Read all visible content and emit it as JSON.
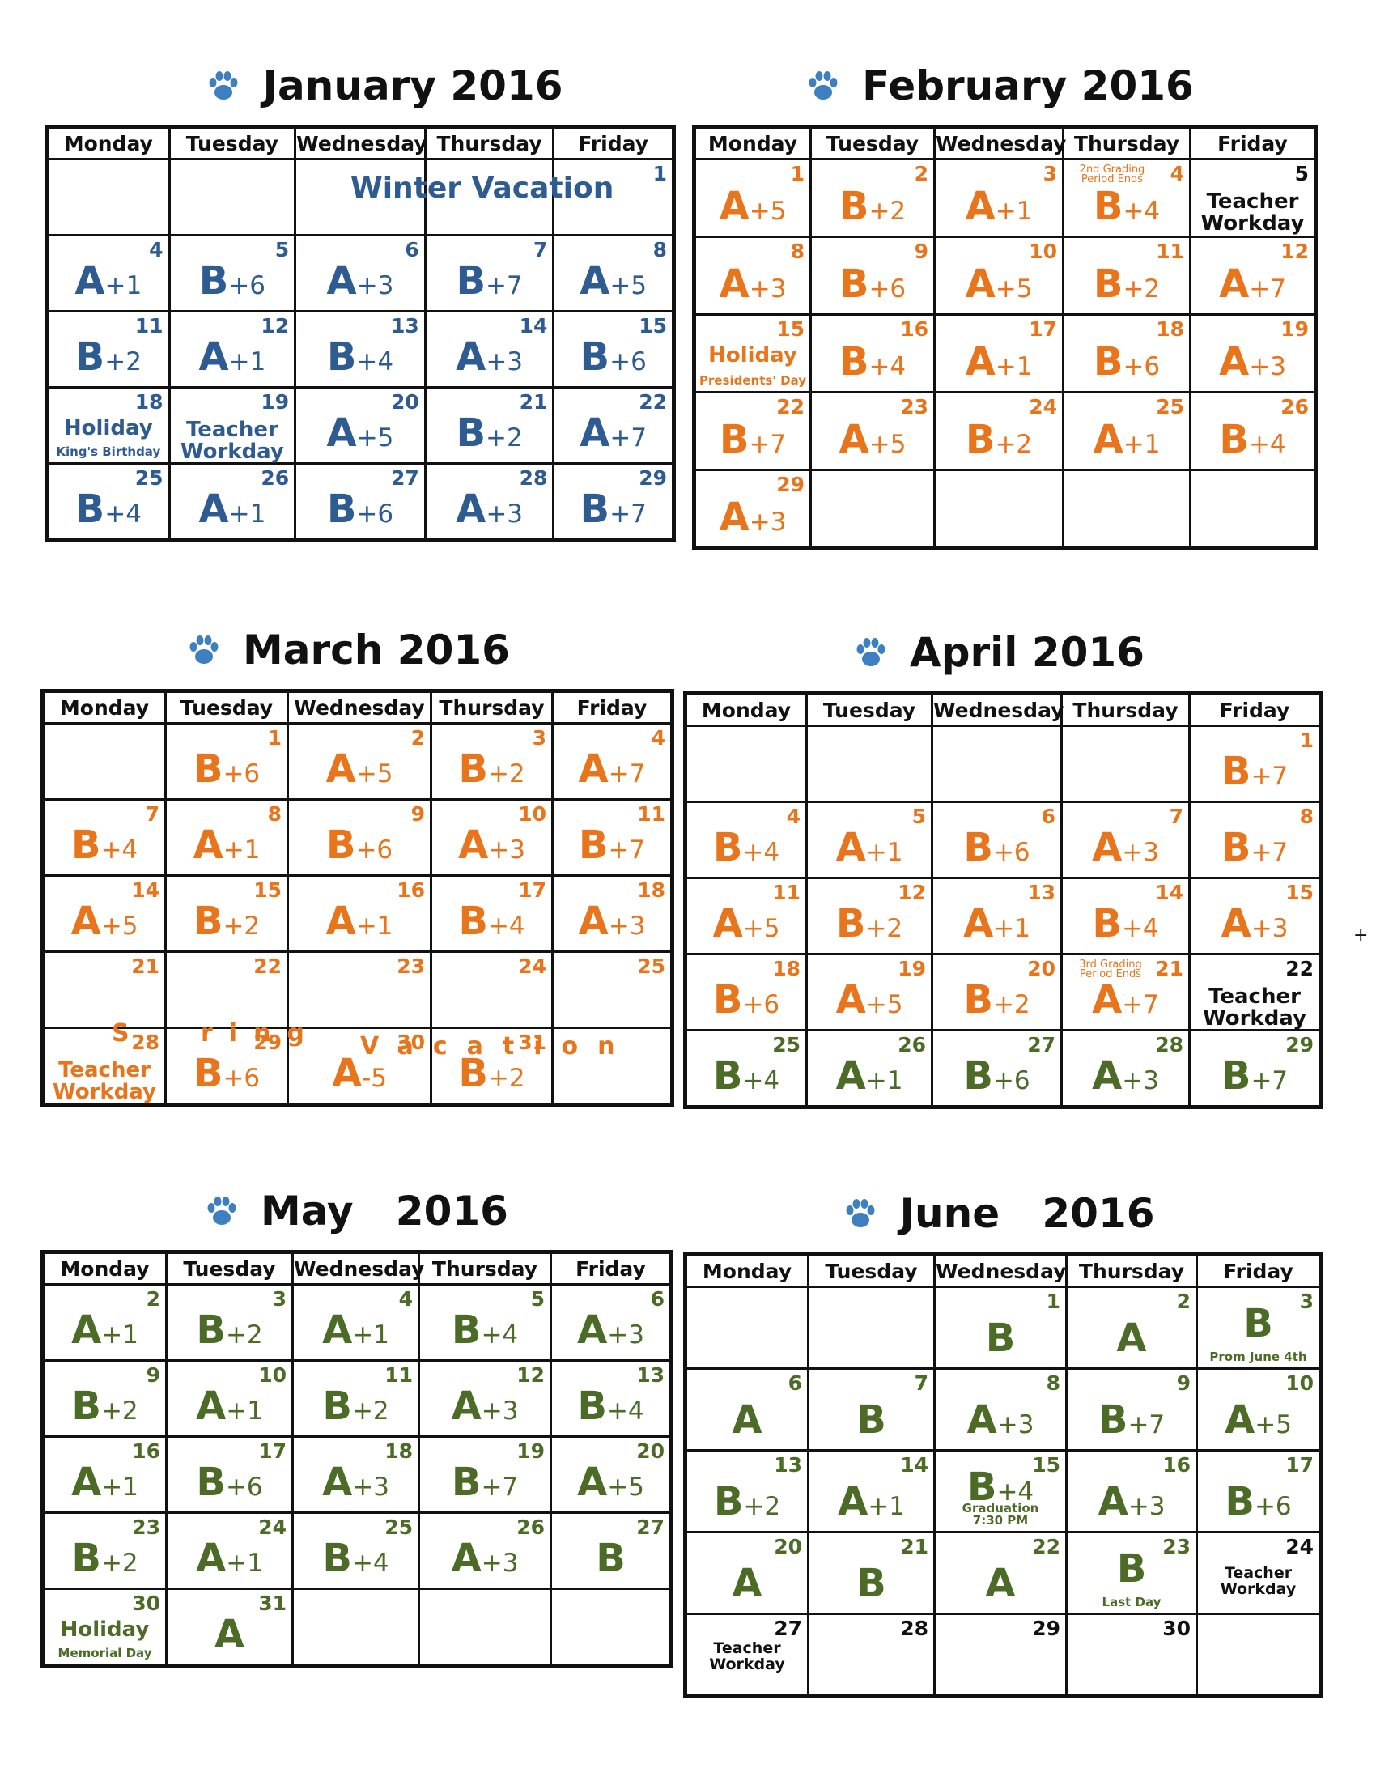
{
  "colors": {
    "january": "#2f5b93",
    "feb_apr": "#e8741c",
    "apr_jun": "#4b6b27",
    "grid": "#111111",
    "paw": "#3e7fc2"
  },
  "weekdays": [
    "Monday",
    "Tuesday",
    "Wednesday",
    "Thursday",
    "Friday"
  ],
  "months": [
    {
      "title": "January 2016",
      "weeks": [
        [
          {},
          {},
          {},
          {},
          {
            "day": "1"
          }
        ],
        [
          {
            "day": "4",
            "letter": "A",
            "delta": "+1"
          },
          {
            "day": "5",
            "letter": "B",
            "delta": "+6"
          },
          {
            "day": "6",
            "letter": "A",
            "delta": "+3"
          },
          {
            "day": "7",
            "letter": "B",
            "delta": "+7"
          },
          {
            "day": "8",
            "letter": "A",
            "delta": "+5"
          }
        ],
        [
          {
            "day": "11",
            "letter": "B",
            "delta": "+2"
          },
          {
            "day": "12",
            "letter": "A",
            "delta": "+1"
          },
          {
            "day": "13",
            "letter": "B",
            "delta": "+4"
          },
          {
            "day": "14",
            "letter": "A",
            "delta": "+3"
          },
          {
            "day": "15",
            "letter": "B",
            "delta": "+6"
          }
        ],
        [
          {
            "day": "18",
            "note": "Holiday",
            "sub": "King's Birthday"
          },
          {
            "day": "19",
            "note": "Teacher\nWorkday"
          },
          {
            "day": "20",
            "letter": "A",
            "delta": "+5"
          },
          {
            "day": "21",
            "letter": "B",
            "delta": "+2"
          },
          {
            "day": "22",
            "letter": "A",
            "delta": "+7"
          }
        ],
        [
          {
            "day": "25",
            "letter": "B",
            "delta": "+4"
          },
          {
            "day": "26",
            "letter": "A",
            "delta": "+1"
          },
          {
            "day": "27",
            "letter": "B",
            "delta": "+6"
          },
          {
            "day": "28",
            "letter": "A",
            "delta": "+3"
          },
          {
            "day": "29",
            "letter": "B",
            "delta": "+7"
          }
        ]
      ],
      "band": "Winter Vacation"
    },
    {
      "title": "February 2016",
      "weeks": [
        [
          {
            "day": "1",
            "letter": "A",
            "delta": "+5"
          },
          {
            "day": "2",
            "letter": "B",
            "delta": "+2"
          },
          {
            "day": "3",
            "letter": "A",
            "delta": "+1"
          },
          {
            "day": "4",
            "letter": "B",
            "delta": "+4",
            "tiny": "2nd Grading Period Ends"
          },
          {
            "day": "5",
            "note": "Teacher\nWorkday"
          }
        ],
        [
          {
            "day": "8",
            "letter": "A",
            "delta": "+3"
          },
          {
            "day": "9",
            "letter": "B",
            "delta": "+6"
          },
          {
            "day": "10",
            "letter": "A",
            "delta": "+5"
          },
          {
            "day": "11",
            "letter": "B",
            "delta": "+2"
          },
          {
            "day": "12",
            "letter": "A",
            "delta": "+7"
          }
        ],
        [
          {
            "day": "15",
            "note": "Holiday",
            "sub": "Presidents' Day"
          },
          {
            "day": "16",
            "letter": "B",
            "delta": "+4"
          },
          {
            "day": "17",
            "letter": "A",
            "delta": "+1"
          },
          {
            "day": "18",
            "letter": "B",
            "delta": "+6"
          },
          {
            "day": "19",
            "letter": "A",
            "delta": "+3"
          }
        ],
        [
          {
            "day": "22",
            "letter": "B",
            "delta": "+7"
          },
          {
            "day": "23",
            "letter": "A",
            "delta": "+5"
          },
          {
            "day": "24",
            "letter": "B",
            "delta": "+2"
          },
          {
            "day": "25",
            "letter": "A",
            "delta": "+1"
          },
          {
            "day": "26",
            "letter": "B",
            "delta": "+4"
          }
        ],
        [
          {
            "day": "29",
            "letter": "A",
            "delta": "+3"
          },
          {},
          {},
          {},
          {}
        ]
      ]
    },
    {
      "title": "March 2016",
      "weeks": [
        [
          {},
          {
            "day": "1",
            "letter": "B",
            "delta": "+6"
          },
          {
            "day": "2",
            "letter": "A",
            "delta": "+5"
          },
          {
            "day": "3",
            "letter": "B",
            "delta": "+2"
          },
          {
            "day": "4",
            "letter": "A",
            "delta": "+7"
          }
        ],
        [
          {
            "day": "7",
            "letter": "B",
            "delta": "+4"
          },
          {
            "day": "8",
            "letter": "A",
            "delta": "+1"
          },
          {
            "day": "9",
            "letter": "B",
            "delta": "+6"
          },
          {
            "day": "10",
            "letter": "A",
            "delta": "+3"
          },
          {
            "day": "11",
            "letter": "B",
            "delta": "+7"
          }
        ],
        [
          {
            "day": "14",
            "letter": "A",
            "delta": "+5"
          },
          {
            "day": "15",
            "letter": "B",
            "delta": "+2"
          },
          {
            "day": "16",
            "letter": "A",
            "delta": "+1"
          },
          {
            "day": "17",
            "letter": "B",
            "delta": "+4"
          },
          {
            "day": "18",
            "letter": "A",
            "delta": "+3"
          }
        ],
        [
          {
            "day": "21"
          },
          {
            "day": "22"
          },
          {
            "day": "23"
          },
          {
            "day": "24"
          },
          {
            "day": "25"
          }
        ],
        [
          {
            "day": "28",
            "note": "Teacher\nWorkday"
          },
          {
            "day": "29",
            "letter": "B",
            "delta": "+6"
          },
          {
            "day": "30",
            "letter": "A",
            "delta": "-5"
          },
          {
            "day": "31",
            "letter": "B",
            "delta": "+2"
          },
          {}
        ]
      ],
      "band_parts": [
        "S",
        "ring",
        "Vacation"
      ]
    },
    {
      "title": "April 2016",
      "weeks": [
        [
          {},
          {},
          {},
          {},
          {
            "day": "1",
            "letter": "B",
            "delta": "+7"
          }
        ],
        [
          {
            "day": "4",
            "letter": "B",
            "delta": "+4"
          },
          {
            "day": "5",
            "letter": "A",
            "delta": "+1"
          },
          {
            "day": "6",
            "letter": "B",
            "delta": "+6"
          },
          {
            "day": "7",
            "letter": "A",
            "delta": "+3"
          },
          {
            "day": "8",
            "letter": "B",
            "delta": "+7"
          }
        ],
        [
          {
            "day": "11",
            "letter": "A",
            "delta": "+5"
          },
          {
            "day": "12",
            "letter": "B",
            "delta": "+2"
          },
          {
            "day": "13",
            "letter": "A",
            "delta": "+1"
          },
          {
            "day": "14",
            "letter": "B",
            "delta": "+4"
          },
          {
            "day": "15",
            "letter": "A",
            "delta": "+3"
          }
        ],
        [
          {
            "day": "18",
            "letter": "B",
            "delta": "+6"
          },
          {
            "day": "19",
            "letter": "A",
            "delta": "+5"
          },
          {
            "day": "20",
            "letter": "B",
            "delta": "+2"
          },
          {
            "day": "21",
            "letter": "A",
            "delta": "+7",
            "tiny": "3rd Grading Period Ends"
          },
          {
            "day": "22",
            "note": "Teacher\nWorkday"
          }
        ],
        [
          {
            "day": "25",
            "letter": "B",
            "delta": "+4"
          },
          {
            "day": "26",
            "letter": "A",
            "delta": "+1"
          },
          {
            "day": "27",
            "letter": "B",
            "delta": "+6"
          },
          {
            "day": "28",
            "letter": "A",
            "delta": "+3"
          },
          {
            "day": "29",
            "letter": "B",
            "delta": "+7"
          }
        ]
      ],
      "stray_mark": "+"
    },
    {
      "title": "May   2016",
      "weeks": [
        [
          {
            "day": "2",
            "letter": "A",
            "delta": "+1"
          },
          {
            "day": "3",
            "letter": "B",
            "delta": "+2"
          },
          {
            "day": "4",
            "letter": "A",
            "delta": "+1"
          },
          {
            "day": "5",
            "letter": "B",
            "delta": "+4"
          },
          {
            "day": "6",
            "letter": "A",
            "delta": "+3"
          }
        ],
        [
          {
            "day": "9",
            "letter": "B",
            "delta": "+2"
          },
          {
            "day": "10",
            "letter": "A",
            "delta": "+1"
          },
          {
            "day": "11",
            "letter": "B",
            "delta": "+2"
          },
          {
            "day": "12",
            "letter": "A",
            "delta": "+3"
          },
          {
            "day": "13",
            "letter": "B",
            "delta": "+4"
          }
        ],
        [
          {
            "day": "16",
            "letter": "A",
            "delta": "+1"
          },
          {
            "day": "17",
            "letter": "B",
            "delta": "+6"
          },
          {
            "day": "18",
            "letter": "A",
            "delta": "+3"
          },
          {
            "day": "19",
            "letter": "B",
            "delta": "+7"
          },
          {
            "day": "20",
            "letter": "A",
            "delta": "+5"
          }
        ],
        [
          {
            "day": "23",
            "letter": "B",
            "delta": "+2"
          },
          {
            "day": "24",
            "letter": "A",
            "delta": "+1"
          },
          {
            "day": "25",
            "letter": "B",
            "delta": "+4"
          },
          {
            "day": "26",
            "letter": "A",
            "delta": "+3"
          },
          {
            "day": "27",
            "letter": "B"
          }
        ],
        [
          {
            "day": "30",
            "note": "Holiday",
            "sub": "Memorial Day"
          },
          {
            "day": "31",
            "letter": "A"
          },
          {},
          {},
          {}
        ]
      ]
    },
    {
      "title": "June   2016",
      "weeks": [
        [
          {},
          {},
          {
            "day": "1",
            "letter": "B"
          },
          {
            "day": "2",
            "letter": "A"
          },
          {
            "day": "3",
            "letter": "B",
            "sub": "Prom June 4th"
          }
        ],
        [
          {
            "day": "6",
            "letter": "A"
          },
          {
            "day": "7",
            "letter": "B"
          },
          {
            "day": "8",
            "letter": "A",
            "delta": "+3"
          },
          {
            "day": "9",
            "letter": "B",
            "delta": "+7"
          },
          {
            "day": "10",
            "letter": "A",
            "delta": "+5"
          }
        ],
        [
          {
            "day": "13",
            "letter": "B",
            "delta": "+2"
          },
          {
            "day": "14",
            "letter": "A",
            "delta": "+1"
          },
          {
            "day": "15",
            "letter": "B",
            "delta": "+4",
            "sub": "Graduation\n7:30 PM"
          },
          {
            "day": "16",
            "letter": "A",
            "delta": "+3"
          },
          {
            "day": "17",
            "letter": "B",
            "delta": "+6"
          }
        ],
        [
          {
            "day": "20",
            "letter": "A"
          },
          {
            "day": "21",
            "letter": "B"
          },
          {
            "day": "22",
            "letter": "A"
          },
          {
            "day": "23",
            "letter": "B",
            "sub": "Last Day"
          },
          {
            "day": "24",
            "note": "Teacher\nWorkday"
          }
        ],
        [
          {
            "day": "27",
            "note": "Teacher\nWorkday"
          },
          {
            "day": "28"
          },
          {
            "day": "29"
          },
          {
            "day": "30"
          },
          {}
        ]
      ]
    }
  ]
}
